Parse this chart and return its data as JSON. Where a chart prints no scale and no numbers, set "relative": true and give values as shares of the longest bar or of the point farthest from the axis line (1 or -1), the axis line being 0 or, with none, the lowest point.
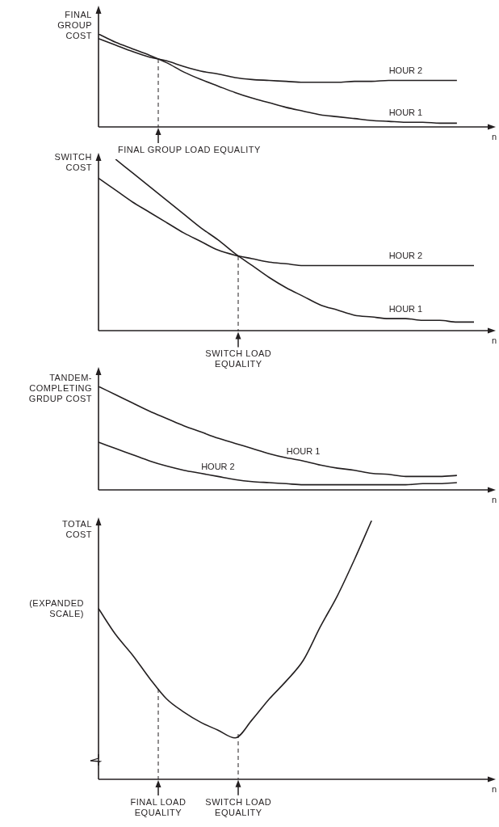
{
  "chart_data": [
    {
      "type": "line",
      "relative": true,
      "marker": "none",
      "ylabel": "FINAL GROUP COST",
      "xlabel": "n",
      "annotations": [
        "FINAL GROUP LOAD EQUALITY"
      ],
      "categories": [
        null,
        null,
        null,
        null,
        null,
        null,
        null,
        null,
        null,
        null,
        null,
        null,
        null,
        null,
        null,
        null,
        null,
        null,
        null,
        null,
        null,
        null,
        null
      ],
      "series": [
        {
          "name": "HOUR 1",
          "color": "#231f20",
          "values": [
            1.0,
            0.91,
            0.84,
            0.77,
            0.69,
            0.59,
            0.51,
            0.44,
            0.37,
            0.31,
            0.26,
            0.21,
            0.17,
            0.13,
            0.11,
            0.09,
            0.07,
            0.06,
            0.05,
            0.05,
            0.04,
            0.04,
            null
          ]
        },
        {
          "name": "HOUR 2",
          "color": "#231f20",
          "values": [
            0.95,
            0.88,
            0.81,
            0.75,
            0.71,
            0.65,
            0.6,
            0.57,
            0.53,
            0.51,
            0.5,
            0.49,
            0.48,
            0.48,
            0.48,
            0.49,
            0.49,
            0.5,
            0.5,
            0.5,
            0.5,
            0.5,
            null
          ]
        }
      ]
    },
    {
      "type": "line",
      "relative": true,
      "marker": "none",
      "ylabel": "SWITCH COST",
      "xlabel": "n",
      "annotations": [
        "SWITCH LOAD EQUALITY"
      ],
      "categories": [
        null,
        null,
        null,
        null,
        null,
        null,
        null,
        null,
        null,
        null,
        null,
        null,
        null,
        null,
        null,
        null,
        null,
        null,
        null,
        null,
        null,
        null,
        null
      ],
      "series": [
        {
          "name": "HOUR 1",
          "color": "#231f20",
          "values": [
            null,
            1.0,
            0.92,
            0.84,
            0.76,
            0.68,
            0.6,
            0.53,
            0.45,
            0.38,
            0.31,
            0.25,
            0.2,
            0.15,
            0.12,
            0.09,
            0.08,
            0.07,
            0.07,
            0.06,
            0.06,
            0.05,
            0.05
          ]
        },
        {
          "name": "HOUR 2",
          "color": "#231f20",
          "values": [
            0.89,
            0.82,
            0.75,
            0.69,
            0.63,
            0.57,
            0.52,
            0.47,
            0.44,
            0.42,
            0.4,
            0.39,
            0.38,
            0.38,
            0.38,
            0.38,
            0.38,
            0.38,
            0.38,
            0.38,
            0.38,
            0.38,
            0.38
          ]
        }
      ]
    },
    {
      "type": "line",
      "relative": true,
      "marker": "none",
      "ylabel": "TANDEM-COMPLETING GRDUP COST",
      "xlabel": "n",
      "categories": [
        null,
        null,
        null,
        null,
        null,
        null,
        null,
        null,
        null,
        null,
        null,
        null,
        null,
        null,
        null,
        null,
        null,
        null,
        null,
        null,
        null,
        null,
        null
      ],
      "series": [
        {
          "name": "HOUR 1",
          "color": "#231f20",
          "values": [
            1.0,
            0.92,
            0.84,
            0.76,
            0.69,
            0.62,
            0.56,
            0.5,
            0.45,
            0.4,
            0.35,
            0.31,
            0.28,
            0.24,
            0.21,
            0.19,
            0.16,
            0.15,
            0.13,
            0.13,
            0.13,
            0.14,
            null
          ]
        },
        {
          "name": "HOUR 2",
          "color": "#231f20",
          "values": [
            0.46,
            0.4,
            0.34,
            0.28,
            0.23,
            0.19,
            0.16,
            0.13,
            0.1,
            0.08,
            0.07,
            0.06,
            0.05,
            0.05,
            0.05,
            0.05,
            0.05,
            0.05,
            0.05,
            0.06,
            0.06,
            0.07,
            null
          ]
        }
      ]
    },
    {
      "type": "line",
      "relative": true,
      "marker": "none",
      "ylabel": "TOTAL COST",
      "xlabel": "n",
      "annotations": [
        "(EXPANDED SCALE)",
        "FINAL LOAD EQUALITY",
        "SWITCH LOAD EQUALITY"
      ],
      "categories": [
        null,
        null,
        null,
        null,
        null,
        null,
        null,
        null,
        null,
        null,
        null,
        null,
        null,
        null,
        null,
        null,
        null,
        null,
        null,
        null,
        null,
        null,
        null
      ],
      "series": [
        {
          "color": "#231f20",
          "values": [
            0.66,
            0.56,
            0.48,
            0.39,
            0.31,
            0.26,
            0.22,
            0.19,
            0.16,
            0.23,
            0.31,
            0.38,
            0.46,
            0.59,
            0.71,
            0.85,
            1.0,
            null,
            null,
            null,
            null,
            null,
            null
          ]
        }
      ]
    }
  ]
}
